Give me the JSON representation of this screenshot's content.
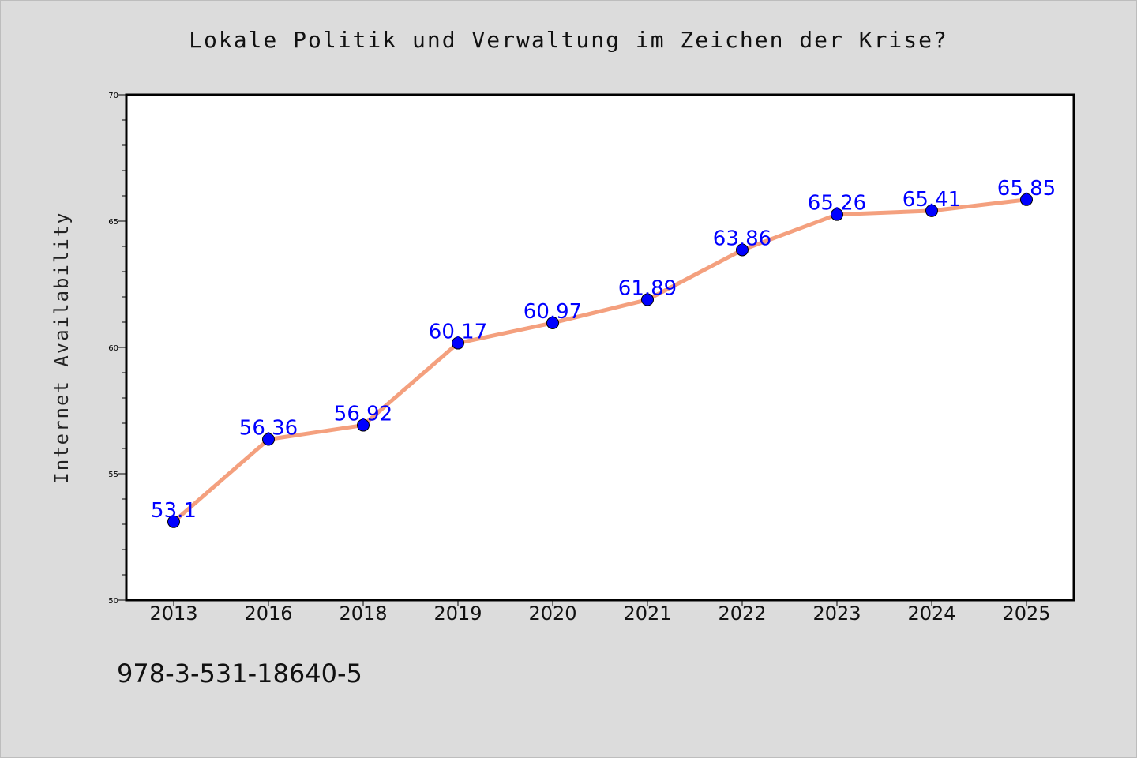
{
  "title": "Lokale Politik und Verwaltung im Zeichen der Krise?",
  "footnote": "978-3-531-18640-5",
  "colors": {
    "background": "#dcdcdc",
    "plot_background": "#ffffff",
    "line": "#f4a07e",
    "marker": "#0000ff",
    "data_label": "#0000ff"
  },
  "chart_data": {
    "type": "line",
    "title": "Lokale Politik und Verwaltung im Zeichen der Krise?",
    "xlabel": "",
    "ylabel": "Internet Availability",
    "categories": [
      "2013",
      "2016",
      "2018",
      "2019",
      "2020",
      "2021",
      "2022",
      "2023",
      "2024",
      "2025"
    ],
    "values": [
      53.1,
      56.36,
      56.92,
      60.17,
      60.97,
      61.89,
      63.86,
      65.26,
      65.41,
      65.85
    ],
    "data_labels": [
      "53.1",
      "56.36",
      "56.92",
      "60.17",
      "60.97",
      "61.89",
      "63.86",
      "65.26",
      "65.41",
      "65.85"
    ],
    "ylim": [
      50,
      70
    ],
    "yticks": [
      50,
      55,
      60,
      65,
      70
    ],
    "grid": false,
    "legend": "none"
  }
}
